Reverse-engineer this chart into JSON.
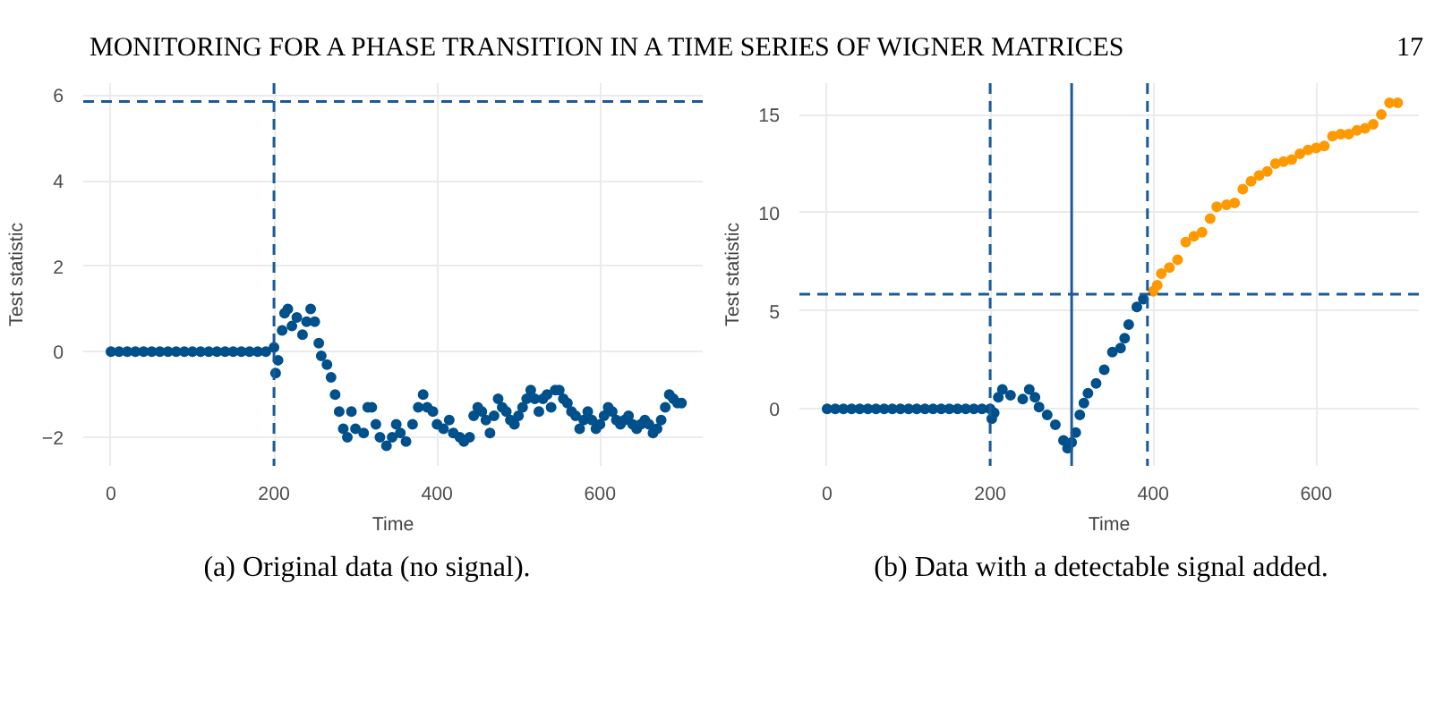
{
  "chart_data": [
    {
      "type": "scatter",
      "title": "MONITORING FOR A PHASE TRANSITION IN A TIME SERIES OF WIGNER MATRICES",
      "xlabel": "Time",
      "ylabel": "Test statistic",
      "annotations": [
        "(a) Original data (no signal)."
      ],
      "xlim": [
        -34,
        726
      ],
      "ylim": [
        -2.67,
        6.28
      ],
      "xticks": [
        0,
        200,
        400,
        600
      ],
      "yticks": [
        -2,
        0,
        2,
        4,
        6
      ],
      "grid": true,
      "marker": "circle",
      "series": [
        {
          "color": "#00508c",
          "x": [
            0,
            10,
            20,
            30,
            40,
            50,
            60,
            70,
            80,
            90,
            100,
            110,
            120,
            130,
            140,
            150,
            160,
            170,
            180,
            190,
            200,
            202,
            205,
            210,
            213,
            217,
            222,
            228,
            235,
            240,
            245,
            250,
            255,
            258,
            265,
            270,
            275,
            280,
            285,
            290,
            295,
            300,
            310,
            315,
            320,
            325,
            330,
            338,
            345,
            350,
            355,
            362,
            370,
            377,
            383,
            388,
            395,
            400,
            408,
            415,
            420,
            428,
            433,
            440,
            445,
            450,
            455,
            460,
            465,
            470,
            475,
            480,
            485,
            490,
            495,
            500,
            505,
            510,
            515,
            520,
            525,
            530,
            535,
            540,
            545,
            550,
            555,
            560,
            565,
            570,
            575,
            580,
            585,
            590,
            595,
            600,
            605,
            610,
            615,
            620,
            625,
            630,
            635,
            640,
            645,
            650,
            655,
            660,
            665,
            670,
            675,
            680,
            685,
            690,
            695,
            700
          ],
          "values": [
            0,
            0,
            0,
            0,
            0,
            0,
            0,
            0,
            0,
            0,
            0,
            0,
            0,
            0,
            0,
            0,
            0,
            0,
            0,
            0,
            0.1,
            -0.5,
            -0.2,
            0.5,
            0.9,
            1.0,
            0.6,
            0.8,
            0.4,
            0.7,
            1.0,
            0.7,
            0.2,
            -0.1,
            -0.3,
            -0.6,
            -1.0,
            -1.4,
            -1.8,
            -2.0,
            -1.4,
            -1.8,
            -1.9,
            -1.3,
            -1.3,
            -1.7,
            -2.0,
            -2.2,
            -2.0,
            -1.7,
            -1.9,
            -2.1,
            -1.7,
            -1.3,
            -1.0,
            -1.3,
            -1.4,
            -1.7,
            -1.8,
            -1.6,
            -1.9,
            -2.0,
            -2.1,
            -2.0,
            -1.5,
            -1.3,
            -1.4,
            -1.6,
            -1.9,
            -1.5,
            -1.1,
            -1.3,
            -1.4,
            -1.6,
            -1.7,
            -1.5,
            -1.3,
            -1.1,
            -0.9,
            -1.1,
            -1.4,
            -1.1,
            -1.0,
            -1.3,
            -0.9,
            -0.9,
            -1.1,
            -1.2,
            -1.4,
            -1.5,
            -1.8,
            -1.6,
            -1.4,
            -1.6,
            -1.8,
            -1.7,
            -1.5,
            -1.3,
            -1.4,
            -1.6,
            -1.7,
            -1.6,
            -1.5,
            -1.7,
            -1.8,
            -1.7,
            -1.6,
            -1.7,
            -1.9,
            -1.8,
            -1.6,
            -1.3,
            -1.0,
            -1.1,
            -1.2,
            -1.2
          ]
        }
      ],
      "ref_lines": [
        {
          "axis": "y",
          "value": 5.85,
          "color": "#1a5a9a",
          "line_style": "dashed"
        },
        {
          "axis": "x",
          "value": 200,
          "color": "#1a5a9a",
          "line_style": "dashed"
        }
      ]
    },
    {
      "type": "scatter",
      "subtitle": "17",
      "xlabel": "Time",
      "ylabel": "Test statistic",
      "annotations": [
        "(b) Data with a detectable signal added."
      ],
      "xlim": [
        -34,
        726
      ],
      "ylim": [
        -2.9,
        16.6
      ],
      "xticks": [
        0,
        200,
        400,
        600
      ],
      "yticks": [
        0,
        5,
        10,
        15
      ],
      "grid": true,
      "marker": "circle",
      "series": [
        {
          "color": "#00508c",
          "x": [
            0,
            10,
            20,
            30,
            40,
            50,
            60,
            70,
            80,
            90,
            100,
            110,
            120,
            130,
            140,
            150,
            160,
            170,
            180,
            190,
            200,
            202,
            205,
            210,
            215,
            225,
            240,
            248,
            255,
            260,
            270,
            280,
            290,
            295,
            300,
            305,
            310,
            315,
            320,
            330,
            340,
            350,
            360,
            365,
            370,
            380,
            388
          ],
          "values": [
            0,
            0,
            0,
            0,
            0,
            0,
            0,
            0,
            0,
            0,
            0,
            0,
            0,
            0,
            0,
            0,
            0,
            0,
            0,
            0,
            0,
            -0.5,
            -0.2,
            0.6,
            1.0,
            0.7,
            0.5,
            1.0,
            0.6,
            0.1,
            -0.3,
            -0.8,
            -1.6,
            -2.0,
            -1.7,
            -1.2,
            -0.3,
            0.3,
            0.8,
            1.3,
            2.0,
            2.9,
            3.1,
            3.6,
            4.3,
            5.2,
            5.6
          ]
        },
        {
          "color": "#ff9900",
          "x": [
            400,
            405,
            410,
            420,
            430,
            440,
            450,
            460,
            470,
            478,
            490,
            500,
            510,
            520,
            530,
            540,
            550,
            560,
            570,
            580,
            590,
            600,
            610,
            620,
            630,
            640,
            650,
            660,
            670,
            680,
            690,
            700
          ],
          "values": [
            6.0,
            6.3,
            6.9,
            7.2,
            7.6,
            8.5,
            8.8,
            9.0,
            9.7,
            10.3,
            10.4,
            10.5,
            11.2,
            11.6,
            11.9,
            12.1,
            12.5,
            12.6,
            12.7,
            13.0,
            13.2,
            13.3,
            13.4,
            13.9,
            14.0,
            14.0,
            14.2,
            14.3,
            14.5,
            15.0,
            15.6,
            15.6
          ]
        }
      ],
      "ref_lines": [
        {
          "axis": "x",
          "value": 200,
          "color": "#1a5a9a",
          "line_style": "dashed"
        },
        {
          "axis": "x",
          "value": 300,
          "color": "#1a5a9a",
          "line_style": "solid"
        },
        {
          "axis": "x",
          "value": 393,
          "color": "#1a5a9a",
          "line_style": "dashed"
        },
        {
          "axis": "y",
          "value": 5.85,
          "color": "#1a5a9a",
          "line_style": "dashed"
        }
      ]
    }
  ]
}
